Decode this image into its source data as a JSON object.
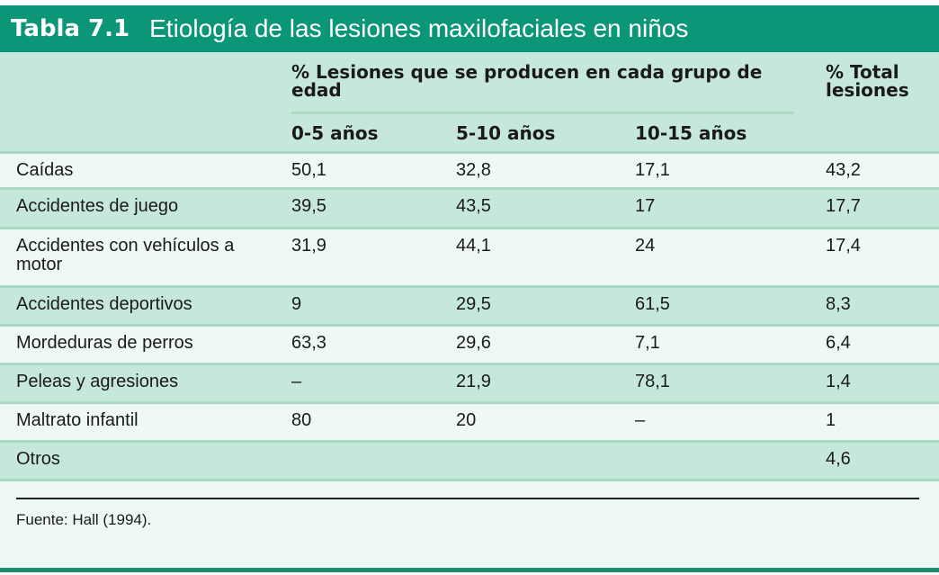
{
  "title": {
    "number": "Tabla 7.1",
    "text": "Etiología de las lesiones maxilofaciales en niños"
  },
  "header": {
    "group": "% Lesiones que se producen en cada grupo de edad",
    "ages": [
      "0-5 años",
      "5-10 años",
      "10-15 años"
    ],
    "total": "% Total lesiones"
  },
  "rows": [
    {
      "label": "Caídas",
      "v": [
        "50,1",
        "32,8",
        "17,1",
        "43,2"
      ]
    },
    {
      "label": "Accidentes de juego",
      "v": [
        "39,5",
        "43,5",
        "17",
        "17,7"
      ]
    },
    {
      "label": "Accidentes con vehículos a motor",
      "v": [
        "31,9",
        "44,1",
        "24",
        "17,4"
      ]
    },
    {
      "label": "Accidentes deportivos",
      "v": [
        "9",
        "29,5",
        "61,5",
        "8,3"
      ]
    },
    {
      "label": "Mordeduras de perros",
      "v": [
        "63,3",
        "29,6",
        "7,1",
        "6,4"
      ]
    },
    {
      "label": "Peleas y agresiones",
      "v": [
        "–",
        "21,9",
        "78,1",
        "1,4"
      ]
    },
    {
      "label": "Maltrato infantil",
      "v": [
        "80",
        "20",
        "–",
        "1"
      ]
    },
    {
      "label": "Otros",
      "v": [
        "",
        "",
        "",
        "4,6"
      ]
    }
  ],
  "source": "Fuente: Hall (1994).",
  "colors": {
    "title_bar": "#0b9677",
    "row_green": "#c6e8da",
    "row_light": "#eef8f4"
  }
}
